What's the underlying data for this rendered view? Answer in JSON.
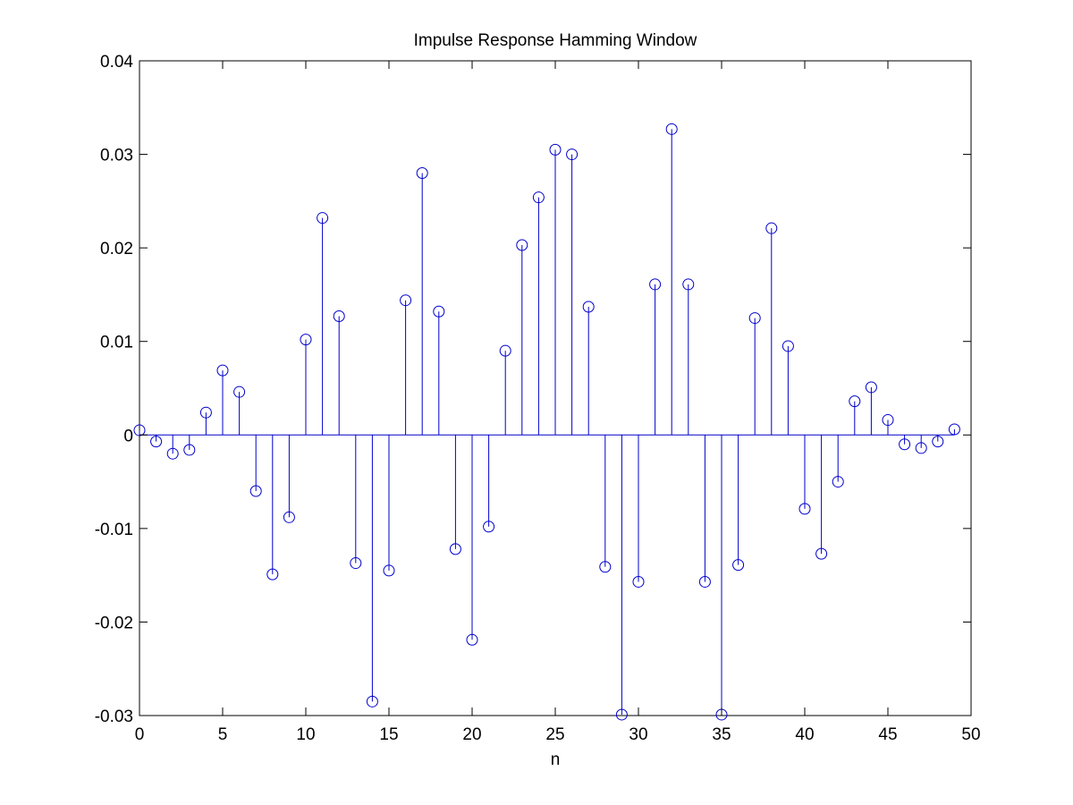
{
  "chart_data": {
    "type": "stem",
    "title": "Impulse Response Hamming Window",
    "xlabel": "n",
    "ylabel": "",
    "xlim": [
      0,
      50
    ],
    "ylim": [
      -0.03,
      0.04
    ],
    "xticks": [
      0,
      5,
      10,
      15,
      20,
      25,
      30,
      35,
      40,
      45,
      50
    ],
    "xtick_labels": [
      "0",
      "5",
      "10",
      "15",
      "20",
      "25",
      "30",
      "35",
      "40",
      "45",
      "50"
    ],
    "yticks": [
      -0.03,
      -0.02,
      -0.01,
      0,
      0.01,
      0.02,
      0.03,
      0.04
    ],
    "ytick_labels": [
      "-0.03",
      "-0.02",
      "-0.01",
      "0",
      "0.01",
      "0.02",
      "0.03",
      "0.04"
    ],
    "grid": false,
    "marker": "circle",
    "series_color": "#0000cc",
    "x": [
      0,
      1,
      2,
      3,
      4,
      5,
      6,
      7,
      8,
      9,
      10,
      11,
      12,
      13,
      14,
      15,
      16,
      17,
      18,
      19,
      20,
      21,
      22,
      23,
      24,
      25,
      26,
      27,
      28,
      29,
      30,
      31,
      32,
      33,
      34,
      35,
      36,
      37,
      38,
      39,
      40,
      41,
      42,
      43,
      44,
      45,
      46,
      47,
      48,
      49
    ],
    "values": [
      0.0005,
      -0.0007,
      -0.002,
      -0.0016,
      0.0024,
      0.0069,
      0.0046,
      -0.006,
      -0.0149,
      -0.0088,
      0.0102,
      0.0232,
      0.0127,
      -0.0137,
      -0.0285,
      -0.0145,
      0.0144,
      0.028,
      0.0132,
      -0.0122,
      -0.0219,
      -0.0098,
      0.009,
      0.0203,
      0.0254,
      0.0305,
      0.03,
      0.0137,
      -0.0141,
      -0.0299,
      -0.0157,
      0.0161,
      0.0327,
      0.0161,
      -0.0157,
      -0.0299,
      -0.0139,
      0.0125,
      0.0221,
      0.0095,
      -0.0079,
      -0.0127,
      -0.005,
      0.0036,
      0.0051,
      0.0016,
      -0.001,
      -0.0014,
      -0.0007,
      0.0006
    ]
  }
}
